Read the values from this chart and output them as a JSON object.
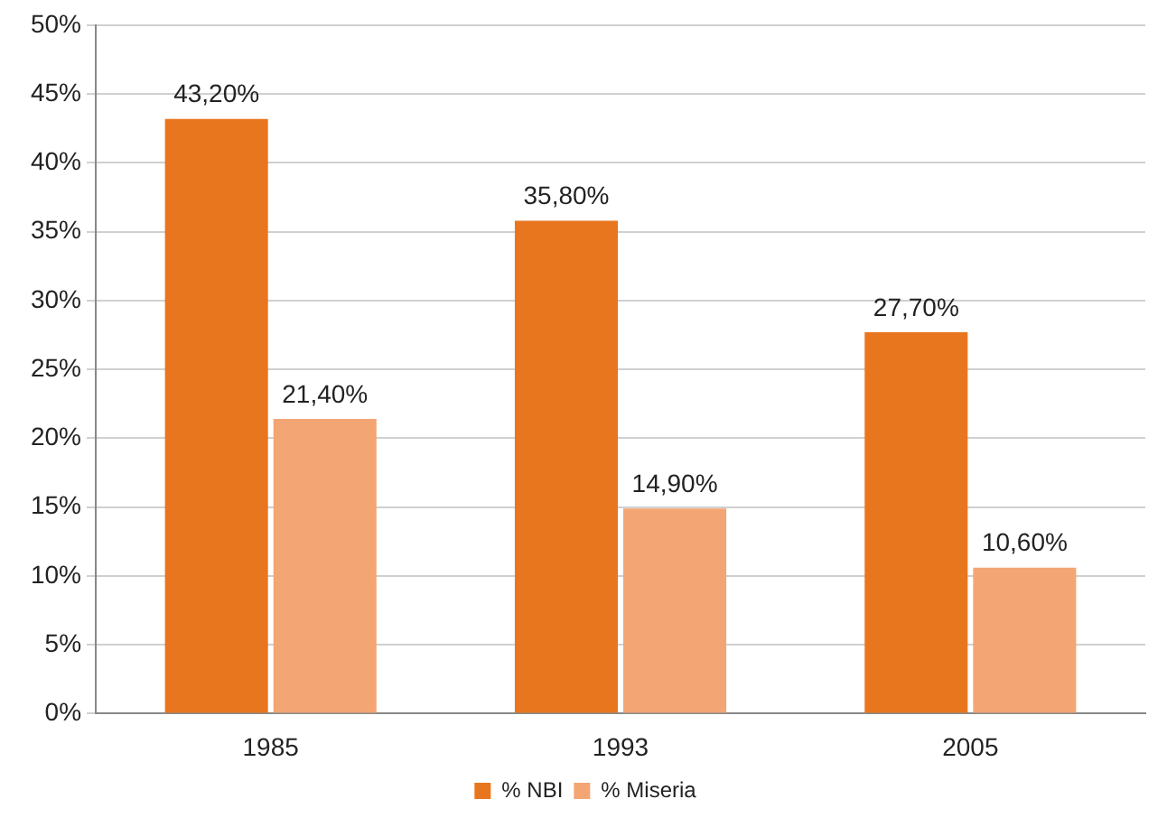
{
  "chart_data": {
    "type": "bar",
    "categories": [
      "1985",
      "1993",
      "2005"
    ],
    "series": [
      {
        "name": "% NBI",
        "color": "#e8761e",
        "values": [
          43.2,
          35.8,
          27.7
        ],
        "value_labels": [
          "43,20%",
          "35,80%",
          "27,70%"
        ]
      },
      {
        "name": "% Miseria",
        "color": "#f4a574",
        "values": [
          21.4,
          14.9,
          10.6
        ],
        "value_labels": [
          "21,40%",
          "14,90%",
          "10,60%"
        ]
      }
    ],
    "ylim": [
      0,
      50
    ],
    "yticks": [
      {
        "value": 0,
        "label": "0%"
      },
      {
        "value": 5,
        "label": "5%"
      },
      {
        "value": 10,
        "label": "10%"
      },
      {
        "value": 15,
        "label": "15%"
      },
      {
        "value": 20,
        "label": "20%"
      },
      {
        "value": 25,
        "label": "25%"
      },
      {
        "value": 30,
        "label": "30%"
      },
      {
        "value": 35,
        "label": "35%"
      },
      {
        "value": 40,
        "label": "40%"
      },
      {
        "value": 45,
        "label": "45%"
      },
      {
        "value": 50,
        "label": "50%"
      }
    ],
    "grid": "y",
    "legend": "bottom"
  }
}
